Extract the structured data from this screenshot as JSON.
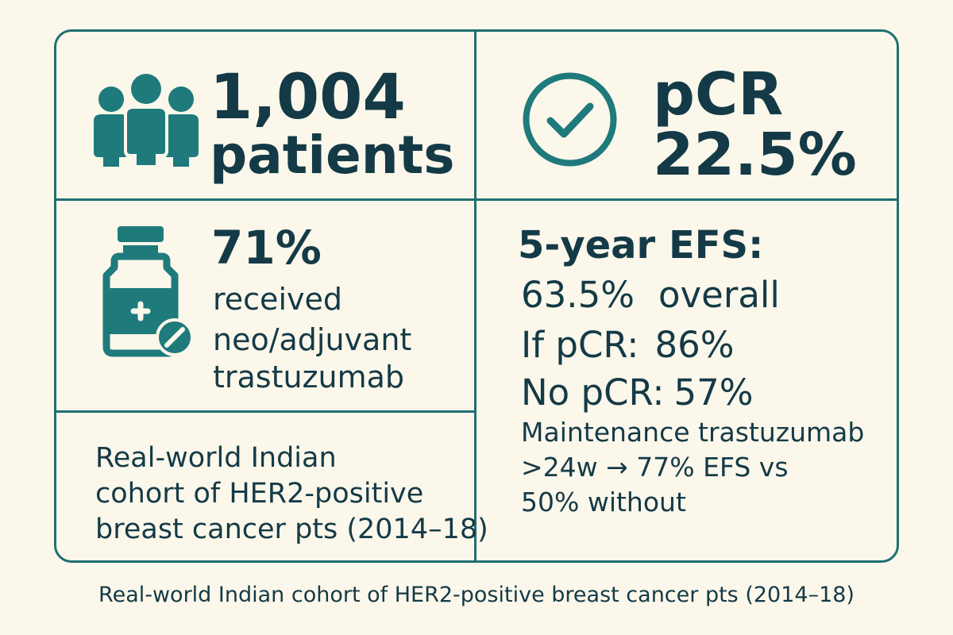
{
  "colors": {
    "background": "#fbf7ea",
    "border": "#1f6f72",
    "accent": "#1f6f72",
    "text": "#143a47"
  },
  "patients": {
    "icon": "people-icon",
    "count": "1,004",
    "label": "patients"
  },
  "pcr": {
    "icon": "check-circle-icon",
    "label": "pCR",
    "value": "22.5%"
  },
  "trastuzumab": {
    "icon": "vial-icon",
    "percent": "71%",
    "lines": [
      "received",
      "neo/adjuvant",
      "trastuzumab"
    ]
  },
  "efs": {
    "title": "5-year EFS:",
    "rows": [
      {
        "label": "63.5%",
        "value": "overall"
      },
      {
        "label": "If pCR:",
        "value": "86%"
      },
      {
        "label": "No pCR:",
        "value": "57%"
      }
    ],
    "maintenance_lines": [
      "Maintenance trastuzumab",
      ">24w → 77% EFS vs",
      "50% without"
    ]
  },
  "cohort": {
    "lines": [
      "Real-world Indian",
      "cohort of HER2-positive",
      "breast cancer pts (2014–18)"
    ]
  },
  "caption": "Real-world Indian cohort of HER2-positive breast cancer pts (2014–18)"
}
